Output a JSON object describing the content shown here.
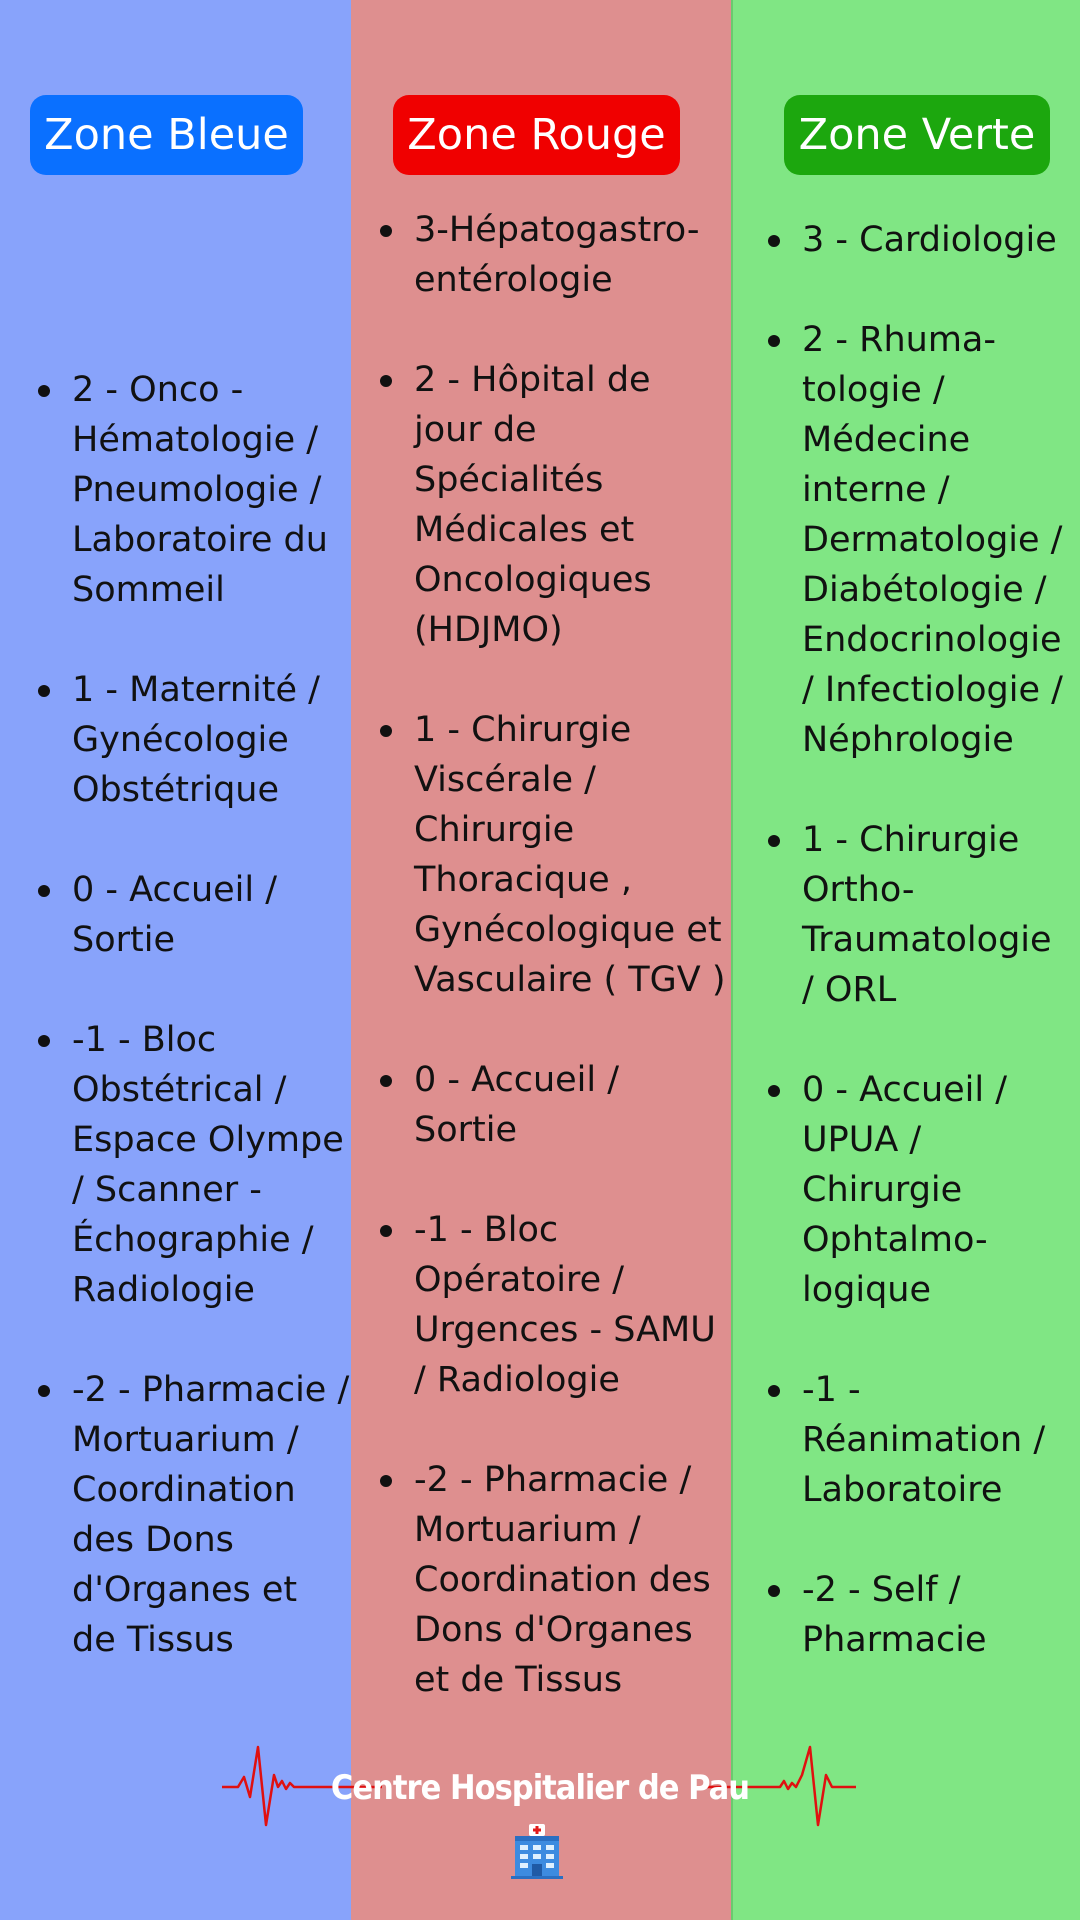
{
  "zones": [
    {
      "title": "Zone Bleue",
      "color": "#0a70ff",
      "background": "#88a3fb",
      "floors": [
        "2 - Onco - Hématologie / Pneumologie / Laboratoire du Sommeil",
        "1 - Maternité / Gynécologie Obstétrique",
        "0 - Accueil / Sortie",
        "-1 - Bloc Obstétrical / Espace Olympe / Scanner - Échographie / Radiologie",
        "-2 - Pharmacie / Mortuarium  / Coordination des Dons d'Organes et de Tissus"
      ]
    },
    {
      "title": "Zone Rouge",
      "color": "#f00000",
      "background": "#de8f8f",
      "floors": [
        "3-Hépatogastro-entérologie",
        "2 - Hôpital de jour de Spécialités Médicales et Oncologiques (HDJMO)",
        "1 - Chirurgie Viscérale / Chirurgie Thoracique , Gynécologique et Vasculaire ( TGV )",
        "0 - Accueil / Sortie",
        "-1 - Bloc Opératoire / Urgences - SAMU / Radiologie",
        "-2 - Pharmacie / Mortuarium  / Coordination des Dons d'Organes et de Tissus"
      ]
    },
    {
      "title": "Zone Verte",
      "color": "#1ca70e",
      "background": "#80e684",
      "floors": [
        "3 - Cardiologie",
        "2 - Rhuma-tologie / Médecine interne / Dermatologie / Diabétologie / Endocrinologie / Infectiologie / Néphrologie",
        "1 - Chirurgie Ortho-Traumatologie / ORL",
        "0 - Accueil / UPUA / Chirurgie Ophtalmo-logique",
        "-1 - Réanimation / Laboratoire",
        "-2 - Self / Pharmacie"
      ]
    }
  ],
  "footer": {
    "title": "Centre Hospitalier de Pau",
    "heartbeat_color": "#e01010",
    "icon": "hospital-building-icon"
  }
}
